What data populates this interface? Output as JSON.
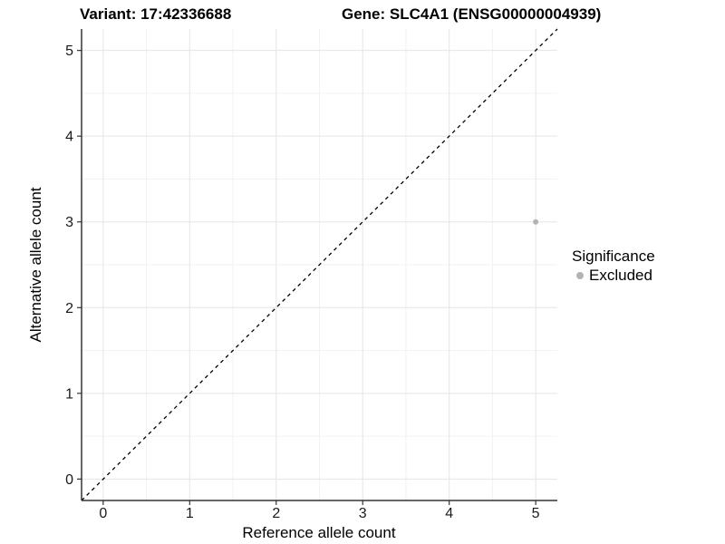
{
  "chart_data": {
    "type": "scatter",
    "titles": {
      "left": "Variant: 17:42336688",
      "right": "Gene: SLC4A1 (ENSG00000004939)"
    },
    "xlabel": "Reference allele count",
    "ylabel": "Alternative allele count",
    "xlim": [
      -0.25,
      5.25
    ],
    "ylim": [
      -0.25,
      5.25
    ],
    "x_major_ticks": [
      0,
      1,
      2,
      3,
      4,
      5
    ],
    "y_major_ticks": [
      0,
      1,
      2,
      3,
      4,
      5
    ],
    "x_minor_ticks": [
      0.5,
      1.5,
      2.5,
      3.5,
      4.5
    ],
    "y_minor_ticks": [
      0.5,
      1.5,
      2.5,
      3.5,
      4.5
    ],
    "grid": "major+minor",
    "legend": {
      "title": "Significance",
      "position": "right"
    },
    "series": [
      {
        "name": "Excluded",
        "color": "#b3b3b3",
        "marker": "dot",
        "points": [
          {
            "x": 5,
            "y": 3
          }
        ]
      }
    ],
    "identity_line": {
      "style": "dashed",
      "color": "#000000",
      "from": [
        -0.25,
        -0.25
      ],
      "to": [
        5.25,
        5.25
      ]
    }
  },
  "colors": {
    "background": "#ffffff",
    "axis": "#333333",
    "tick_label": "#1a1a1a",
    "grid_major": "#e5e5e5",
    "grid_minor": "#f2f2f2"
  }
}
